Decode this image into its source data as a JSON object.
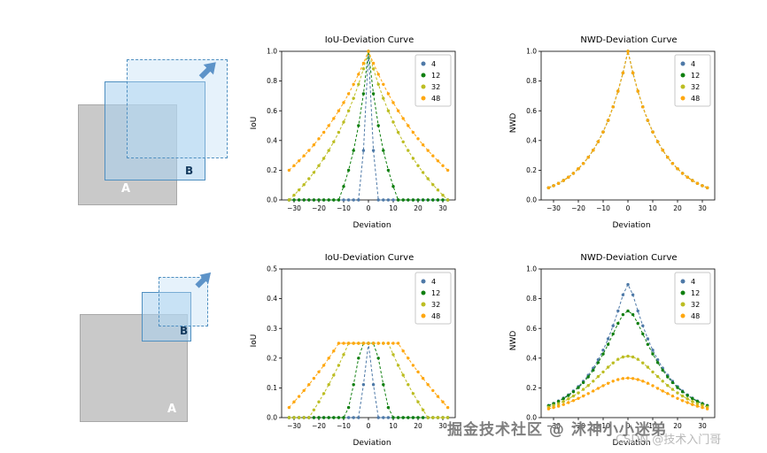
{
  "watermarks": {
    "primary": "掘金技术社区 @ 沐神小小迷弟",
    "secondary": "CSDN @技术入门哥"
  },
  "diagrams": {
    "top": {
      "box_a_label": "A",
      "box_b_label": "B"
    },
    "bottom": {
      "box_a_label": "A",
      "box_b_label": "B"
    }
  },
  "colors": {
    "size4": "#4e79a7",
    "size12": "#0f7f0f",
    "size32": "#bcbd22",
    "size48": "#ffa70e",
    "box_blue": "#4f8fc0",
    "box_gray": "#c9c9c9"
  },
  "chart_data": [
    {
      "type": "line",
      "title": "IoU-Deviation Curve",
      "xlabel": "Deviation",
      "ylabel": "IoU",
      "xlim": [
        -35,
        35
      ],
      "ylim": [
        0,
        1.0
      ],
      "xticks": [
        -30,
        -20,
        -10,
        0,
        10,
        20,
        30
      ],
      "yticks": [
        0.0,
        0.2,
        0.4,
        0.6,
        0.8,
        1.0
      ],
      "grid": false,
      "legend_position": "upper right",
      "linestyle": "dashed",
      "marker": "o",
      "x_abs": [
        0,
        2,
        4,
        6,
        8,
        10,
        12,
        14,
        16,
        18,
        20,
        22,
        24,
        26,
        28,
        30,
        32
      ],
      "symmetric": true,
      "series": [
        {
          "name": "4",
          "color": "#4e79a7",
          "values": [
            1,
            0.333,
            0,
            0,
            0,
            0,
            0,
            0,
            0,
            0,
            0,
            0,
            0,
            0,
            0,
            0,
            0
          ]
        },
        {
          "name": "12",
          "color": "#0f7f0f",
          "values": [
            1,
            0.714,
            0.5,
            0.333,
            0.2,
            0.091,
            0,
            0,
            0,
            0,
            0,
            0,
            0,
            0,
            0,
            0,
            0
          ]
        },
        {
          "name": "32",
          "color": "#bcbd22",
          "values": [
            1,
            0.882,
            0.778,
            0.684,
            0.6,
            0.524,
            0.455,
            0.391,
            0.333,
            0.28,
            0.231,
            0.185,
            0.143,
            0.103,
            0.067,
            0.032,
            0
          ]
        },
        {
          "name": "48",
          "color": "#ffa70e",
          "values": [
            1,
            0.92,
            0.846,
            0.778,
            0.714,
            0.655,
            0.6,
            0.548,
            0.5,
            0.455,
            0.412,
            0.371,
            0.333,
            0.297,
            0.263,
            0.231,
            0.2
          ]
        }
      ]
    },
    {
      "type": "line",
      "title": "NWD-Deviation Curve",
      "xlabel": "Deviation",
      "ylabel": "NWD",
      "xlim": [
        -35,
        35
      ],
      "ylim": [
        0,
        1.0
      ],
      "xticks": [
        -30,
        -20,
        -10,
        0,
        10,
        20,
        30
      ],
      "yticks": [
        0.0,
        0.2,
        0.4,
        0.6,
        0.8,
        1.0
      ],
      "grid": false,
      "legend_position": "upper right",
      "linestyle": "dashed",
      "marker": "o",
      "overlapping_series": true,
      "x_abs": [
        0,
        2,
        4,
        6,
        8,
        10,
        12,
        14,
        16,
        18,
        20,
        22,
        24,
        26,
        28,
        30,
        32
      ],
      "symmetric": true,
      "series": [
        {
          "name": "4",
          "color": "#4e79a7",
          "values": [
            1,
            0.855,
            0.732,
            0.626,
            0.535,
            0.458,
            0.392,
            0.335,
            0.287,
            0.245,
            0.21,
            0.179,
            0.153,
            0.131,
            0.112,
            0.096,
            0.082
          ]
        },
        {
          "name": "12",
          "color": "#0f7f0f",
          "values": [
            1,
            0.855,
            0.732,
            0.626,
            0.535,
            0.458,
            0.392,
            0.335,
            0.287,
            0.245,
            0.21,
            0.179,
            0.153,
            0.131,
            0.112,
            0.096,
            0.082
          ]
        },
        {
          "name": "32",
          "color": "#bcbd22",
          "values": [
            1,
            0.855,
            0.732,
            0.626,
            0.535,
            0.458,
            0.392,
            0.335,
            0.287,
            0.245,
            0.21,
            0.179,
            0.153,
            0.131,
            0.112,
            0.096,
            0.082
          ]
        },
        {
          "name": "48",
          "color": "#ffa70e",
          "values": [
            1,
            0.855,
            0.732,
            0.626,
            0.535,
            0.458,
            0.392,
            0.335,
            0.287,
            0.245,
            0.21,
            0.179,
            0.153,
            0.131,
            0.112,
            0.096,
            0.082
          ]
        }
      ]
    },
    {
      "type": "line",
      "title": "IoU-Deviation Curve",
      "xlabel": "Deviation",
      "ylabel": "IoU",
      "xlim": [
        -35,
        35
      ],
      "ylim": [
        0,
        0.5
      ],
      "xticks": [
        -30,
        -20,
        -10,
        0,
        10,
        20,
        30
      ],
      "yticks": [
        0.0,
        0.1,
        0.2,
        0.3,
        0.4,
        0.5
      ],
      "grid": false,
      "legend_position": "upper right",
      "linestyle": "dashed",
      "marker": "o",
      "x_abs": [
        0,
        2,
        4,
        6,
        8,
        10,
        12,
        14,
        16,
        18,
        20,
        22,
        24,
        26,
        28,
        30,
        32
      ],
      "symmetric": true,
      "series": [
        {
          "name": "4",
          "color": "#4e79a7",
          "values": [
            0.25,
            0.111,
            0,
            0,
            0,
            0,
            0,
            0,
            0,
            0,
            0,
            0,
            0,
            0,
            0,
            0,
            0
          ]
        },
        {
          "name": "12",
          "color": "#0f7f0f",
          "values": [
            0.25,
            0.25,
            0.2,
            0.111,
            0.034,
            0,
            0,
            0,
            0,
            0,
            0,
            0,
            0,
            0,
            0,
            0,
            0
          ]
        },
        {
          "name": "32",
          "color": "#bcbd22",
          "values": [
            0.25,
            0.25,
            0.25,
            0.25,
            0.25,
            0.212,
            0.176,
            0.143,
            0.111,
            0.081,
            0.053,
            0.026,
            0,
            0,
            0,
            0,
            0
          ]
        },
        {
          "name": "48",
          "color": "#ffa70e",
          "values": [
            0.25,
            0.25,
            0.25,
            0.25,
            0.25,
            0.25,
            0.25,
            0.224,
            0.2,
            0.176,
            0.154,
            0.132,
            0.111,
            0.091,
            0.071,
            0.053,
            0.034
          ]
        }
      ]
    },
    {
      "type": "line",
      "title": "NWD-Deviation Curve",
      "xlabel": "Deviation",
      "ylabel": "NWD",
      "xlim": [
        -35,
        35
      ],
      "ylim": [
        0,
        1.0
      ],
      "xticks": [
        -30,
        -20,
        -10,
        0,
        10,
        20,
        30
      ],
      "yticks": [
        0.0,
        0.2,
        0.4,
        0.6,
        0.8,
        1.0
      ],
      "grid": false,
      "legend_position": "upper right",
      "linestyle": "dashed",
      "marker": "o",
      "x_abs": [
        0,
        2,
        4,
        6,
        8,
        10,
        12,
        14,
        16,
        18,
        20,
        22,
        24,
        26,
        28,
        30,
        32
      ],
      "symmetric": true,
      "series": [
        {
          "name": "4",
          "color": "#4e79a7",
          "values": [
            0.895,
            0.826,
            0.718,
            0.618,
            0.53,
            0.454,
            0.389,
            0.333,
            0.285,
            0.244,
            0.209,
            0.179,
            0.153,
            0.131,
            0.112,
            0.096,
            0.082
          ]
        },
        {
          "name": "12",
          "color": "#0f7f0f",
          "values": [
            0.718,
            0.693,
            0.634,
            0.563,
            0.493,
            0.428,
            0.37,
            0.319,
            0.274,
            0.236,
            0.202,
            0.174,
            0.149,
            0.128,
            0.109,
            0.094,
            0.08
          ]
        },
        {
          "name": "32",
          "color": "#bcbd22",
          "values": [
            0.413,
            0.408,
            0.392,
            0.368,
            0.339,
            0.307,
            0.276,
            0.245,
            0.216,
            0.19,
            0.166,
            0.145,
            0.126,
            0.109,
            0.094,
            0.082,
            0.071
          ]
        },
        {
          "name": "48",
          "color": "#ffa70e",
          "values": [
            0.266,
            0.263,
            0.256,
            0.245,
            0.231,
            0.215,
            0.197,
            0.179,
            0.162,
            0.145,
            0.129,
            0.114,
            0.101,
            0.088,
            0.077,
            0.068,
            0.059
          ]
        }
      ]
    }
  ]
}
